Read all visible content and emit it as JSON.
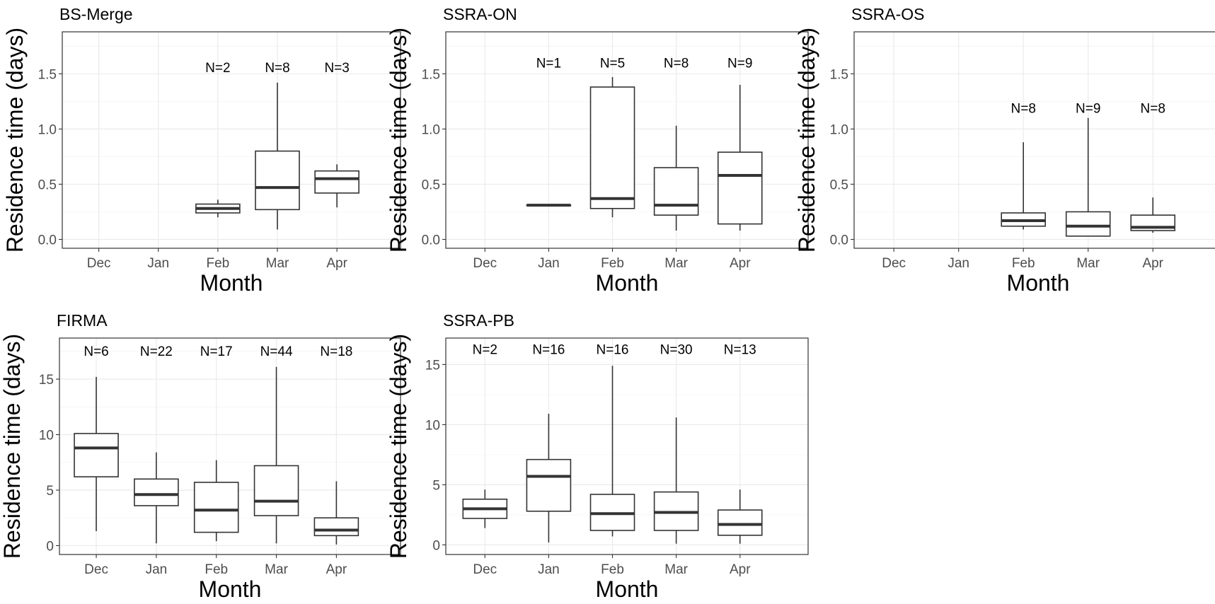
{
  "chart_data": [
    {
      "type": "box",
      "title": "BS-Merge",
      "xlabel": "Month",
      "ylabel": "Residence time (days)",
      "categories": [
        "Dec",
        "Jan",
        "Feb",
        "Mar",
        "Apr"
      ],
      "ylim": [
        -0.08,
        1.88
      ],
      "yticks": [
        0.0,
        0.5,
        1.0,
        1.5
      ],
      "ytick_labels": [
        "0.0",
        "0.5",
        "1.0",
        "1.5"
      ],
      "n_label_y": 1.56,
      "grid": true,
      "boxes": [
        null,
        null,
        {
          "min": 0.2,
          "q1": 0.24,
          "median": 0.28,
          "q3": 0.32,
          "max": 0.36,
          "n_label": "N=2"
        },
        {
          "min": 0.09,
          "q1": 0.27,
          "median": 0.47,
          "q3": 0.8,
          "max": 1.42,
          "n_label": "N=8"
        },
        {
          "min": 0.29,
          "q1": 0.42,
          "median": 0.55,
          "q3": 0.62,
          "max": 0.68,
          "n_label": "N=3"
        }
      ]
    },
    {
      "type": "box",
      "title": "SSRA-ON",
      "xlabel": "Month",
      "ylabel": "Residence time (days)",
      "categories": [
        "Dec",
        "Jan",
        "Feb",
        "Mar",
        "Apr"
      ],
      "ylim": [
        -0.08,
        1.88
      ],
      "yticks": [
        0.0,
        0.5,
        1.0,
        1.5
      ],
      "ytick_labels": [
        "0.0",
        "0.5",
        "1.0",
        "1.5"
      ],
      "n_label_y": 1.6,
      "grid": true,
      "boxes": [
        null,
        {
          "min": 0.31,
          "q1": 0.31,
          "median": 0.31,
          "q3": 0.31,
          "max": 0.31,
          "n_label": "N=1"
        },
        {
          "min": 0.2,
          "q1": 0.28,
          "median": 0.37,
          "q3": 1.38,
          "max": 1.47,
          "n_label": "N=5"
        },
        {
          "min": 0.08,
          "q1": 0.22,
          "median": 0.31,
          "q3": 0.65,
          "max": 1.03,
          "n_label": "N=8"
        },
        {
          "min": 0.08,
          "q1": 0.14,
          "median": 0.58,
          "q3": 0.79,
          "max": 1.4,
          "n_label": "N=9"
        }
      ]
    },
    {
      "type": "box",
      "title": "SSRA-OS",
      "xlabel": "Month",
      "ylabel": "Residence time (days)",
      "categories": [
        "Dec",
        "Jan",
        "Feb",
        "Mar",
        "Apr"
      ],
      "ylim": [
        -0.08,
        1.88
      ],
      "yticks": [
        0.0,
        0.5,
        1.0,
        1.5
      ],
      "ytick_labels": [
        "0.0",
        "0.5",
        "1.0",
        "1.5"
      ],
      "n_label_y": 1.19,
      "grid": true,
      "boxes": [
        null,
        null,
        {
          "min": 0.09,
          "q1": 0.12,
          "median": 0.17,
          "q3": 0.24,
          "max": 0.88,
          "n_label": "N=8"
        },
        {
          "min": 0.03,
          "q1": 0.03,
          "median": 0.12,
          "q3": 0.25,
          "max": 1.1,
          "n_label": "N=9"
        },
        {
          "min": 0.06,
          "q1": 0.08,
          "median": 0.11,
          "q3": 0.22,
          "max": 0.38,
          "n_label": "N=8"
        }
      ]
    },
    {
      "type": "box",
      "title": "FIRMA",
      "xlabel": "Month",
      "ylabel": "Residence time (days)",
      "categories": [
        "Dec",
        "Jan",
        "Feb",
        "Mar",
        "Apr"
      ],
      "ylim": [
        -0.8,
        18.7
      ],
      "yticks": [
        0,
        5,
        10,
        15
      ],
      "ytick_labels": [
        "0",
        "5",
        "10",
        "15"
      ],
      "n_label_y": 17.55,
      "grid": true,
      "boxes": [
        {
          "min": 1.3,
          "q1": 6.2,
          "median": 8.8,
          "q3": 10.1,
          "max": 15.2,
          "n_label": "N=6"
        },
        {
          "min": 0.2,
          "q1": 3.6,
          "median": 4.6,
          "q3": 6.0,
          "max": 8.4,
          "n_label": "N=22"
        },
        {
          "min": 0.4,
          "q1": 1.2,
          "median": 3.2,
          "q3": 5.7,
          "max": 7.7,
          "n_label": "N=17"
        },
        {
          "min": 0.2,
          "q1": 2.7,
          "median": 4.0,
          "q3": 7.2,
          "max": 16.1,
          "n_label": "N=44"
        },
        {
          "min": 0.1,
          "q1": 0.9,
          "median": 1.4,
          "q3": 2.5,
          "max": 5.8,
          "n_label": "N=18"
        }
      ]
    },
    {
      "type": "box",
      "title": "SSRA-PB",
      "xlabel": "Month",
      "ylabel": "Residence time (days)",
      "categories": [
        "Dec",
        "Jan",
        "Feb",
        "Mar",
        "Apr"
      ],
      "ylim": [
        -0.8,
        17.2
      ],
      "yticks": [
        0,
        5,
        10,
        15
      ],
      "ytick_labels": [
        "0",
        "5",
        "10",
        "15"
      ],
      "n_label_y": 16.3,
      "grid": true,
      "boxes": [
        {
          "min": 1.4,
          "q1": 2.2,
          "median": 3.0,
          "q3": 3.8,
          "max": 4.6,
          "n_label": "N=2"
        },
        {
          "min": 0.2,
          "q1": 2.8,
          "median": 5.7,
          "q3": 7.1,
          "max": 10.9,
          "n_label": "N=16"
        },
        {
          "min": 0.7,
          "q1": 1.2,
          "median": 2.6,
          "q3": 4.2,
          "max": 14.9,
          "n_label": "N=16"
        },
        {
          "min": 0.1,
          "q1": 1.2,
          "median": 2.7,
          "q3": 4.4,
          "max": 10.6,
          "n_label": "N=30"
        },
        {
          "min": 0.1,
          "q1": 0.8,
          "median": 1.7,
          "q3": 2.9,
          "max": 4.6,
          "n_label": "N=13"
        }
      ]
    }
  ]
}
